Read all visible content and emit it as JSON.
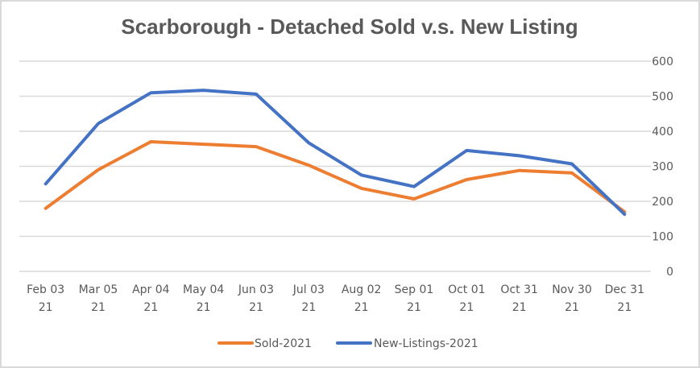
{
  "chart_data": {
    "type": "line",
    "title": "Scarborough - Detached Sold v.s. New Listing",
    "xlabel": "",
    "ylabel": "",
    "categories": [
      [
        "Feb 03",
        "21"
      ],
      [
        "Mar 05",
        "21"
      ],
      [
        "Apr 04",
        "21"
      ],
      [
        "May 04",
        "21"
      ],
      [
        "Jun 03",
        "21"
      ],
      [
        "Jul 03",
        "21"
      ],
      [
        "Aug 02",
        "21"
      ],
      [
        "Sep 01",
        "21"
      ],
      [
        "Oct 01",
        "21"
      ],
      [
        "Oct 31",
        "21"
      ],
      [
        "Nov 30",
        "21"
      ],
      [
        "Dec 31",
        "21"
      ]
    ],
    "series": [
      {
        "name": "Sold-2021",
        "color": "#ed7d31",
        "values": [
          180,
          290,
          370,
          363,
          356,
          303,
          237,
          207,
          262,
          288,
          281,
          170
        ]
      },
      {
        "name": "New-Listings-2021",
        "color": "#4472c4",
        "values": [
          250,
          422,
          510,
          517,
          506,
          367,
          275,
          242,
          345,
          330,
          307,
          163
        ]
      }
    ],
    "ylim": [
      0,
      600
    ],
    "yticks": [
      0,
      100,
      200,
      300,
      400,
      500,
      600
    ],
    "yaxis_side": "right",
    "grid": true,
    "legend_position": "bottom"
  }
}
